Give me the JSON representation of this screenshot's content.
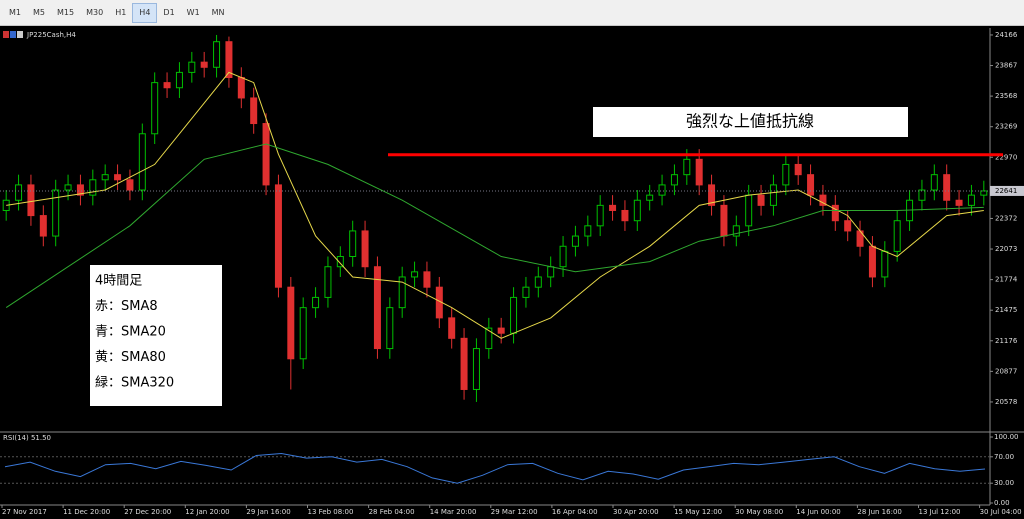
{
  "toolbar": {
    "buttons": [
      "M1",
      "M5",
      "M15",
      "M30",
      "H1",
      "H4",
      "D1",
      "W1",
      "MN"
    ],
    "active": "H4"
  },
  "chart_data": {
    "type": "candlestick",
    "symbol": "JP225Cash,H4",
    "open": [
      22450,
      22550,
      22700,
      22400,
      22200,
      22650,
      22700,
      22600,
      22750,
      22800,
      22750,
      22650,
      23200,
      23700,
      23650,
      23800,
      23900,
      23850,
      24100,
      23750,
      23550,
      23300,
      22700,
      21700,
      21000,
      21500,
      21600,
      21900,
      22000,
      22250,
      21900,
      21100,
      21500,
      21800,
      21850,
      21700,
      21400,
      21200,
      20700,
      21100,
      21300,
      21250,
      21600,
      21700,
      21800,
      21900,
      22100,
      22200,
      22300,
      22500,
      22450,
      22350,
      22550,
      22600,
      22700,
      22800,
      22950,
      22700,
      22500,
      22200,
      22300,
      22600,
      22500,
      22700,
      22900,
      22800,
      22600,
      22500,
      22350,
      22250,
      22100,
      21800,
      22050,
      22350,
      22550,
      22650,
      22800,
      22550,
      22500,
      22600
    ],
    "high": [
      22650,
      22800,
      22800,
      22500,
      22750,
      22800,
      22800,
      22850,
      22900,
      22900,
      22850,
      23300,
      23800,
      23800,
      23900,
      24000,
      24000,
      24166,
      24150,
      23850,
      23650,
      23400,
      22800,
      21800,
      21600,
      21700,
      22000,
      22100,
      22350,
      22350,
      22000,
      21600,
      21900,
      21950,
      21950,
      21800,
      21500,
      21300,
      21200,
      21400,
      21400,
      21700,
      21800,
      21900,
      22000,
      22200,
      22300,
      22400,
      22600,
      22600,
      22550,
      22650,
      22700,
      22800,
      22900,
      23050,
      23050,
      22800,
      22600,
      22400,
      22700,
      22700,
      22800,
      23000,
      23000,
      22900,
      22700,
      22600,
      22450,
      22350,
      22200,
      22150,
      22450,
      22650,
      22750,
      22900,
      22900,
      22650,
      22700,
      22741
    ],
    "low": [
      22350,
      22450,
      22300,
      22100,
      22100,
      22550,
      22500,
      22500,
      22650,
      22650,
      22550,
      22550,
      23100,
      23550,
      23550,
      23700,
      23750,
      23750,
      23650,
      23450,
      23200,
      22600,
      21600,
      20700,
      20900,
      21400,
      21500,
      21800,
      21900,
      21800,
      21000,
      21000,
      21400,
      21700,
      21600,
      21300,
      21100,
      20600,
      20578,
      21000,
      21150,
      21150,
      21500,
      21600,
      21700,
      21800,
      22000,
      22100,
      22200,
      22350,
      22250,
      22250,
      22450,
      22500,
      22600,
      22700,
      22600,
      22400,
      22100,
      22100,
      22200,
      22400,
      22400,
      22600,
      22700,
      22500,
      22400,
      22250,
      22150,
      22000,
      21700,
      21700,
      21950,
      22250,
      22450,
      22550,
      22450,
      22400,
      22400,
      22500
    ],
    "close": [
      22550,
      22700,
      22400,
      22200,
      22650,
      22700,
      22600,
      22750,
      22800,
      22750,
      22650,
      23200,
      23700,
      23650,
      23800,
      23900,
      23850,
      24100,
      23750,
      23550,
      23300,
      22700,
      21700,
      21000,
      21500,
      21600,
      21900,
      22000,
      22250,
      21900,
      21100,
      21500,
      21800,
      21850,
      21700,
      21400,
      21200,
      20700,
      21100,
      21300,
      21250,
      21600,
      21700,
      21800,
      21900,
      22100,
      22200,
      22300,
      22500,
      22450,
      22350,
      22550,
      22600,
      22700,
      22800,
      22950,
      22700,
      22500,
      22200,
      22300,
      22600,
      22500,
      22700,
      22900,
      22800,
      22600,
      22500,
      22350,
      22250,
      22100,
      21800,
      22050,
      22350,
      22550,
      22650,
      22800,
      22550,
      22500,
      22600,
      22641
    ],
    "up_color": "#00c000",
    "down_color": "#e03030",
    "lines": [
      {
        "color": "#e6d84a",
        "x": [
          0,
          8,
          12,
          16,
          18,
          20,
          22,
          25,
          28,
          32,
          36,
          40,
          44,
          48,
          52,
          56,
          60,
          64,
          68,
          70,
          72,
          76,
          79
        ],
        "values": [
          22500,
          22650,
          22900,
          23500,
          23800,
          23700,
          23000,
          22200,
          21800,
          21750,
          21500,
          21200,
          21400,
          21800,
          22100,
          22500,
          22600,
          22650,
          22400,
          22100,
          22000,
          22400,
          22450
        ]
      },
      {
        "color": "#2fa82f",
        "x": [
          0,
          10,
          16,
          21,
          26,
          32,
          40,
          46,
          52,
          56,
          62,
          66,
          72,
          79
        ],
        "values": [
          21500,
          22300,
          22950,
          23100,
          22900,
          22550,
          22000,
          21850,
          21950,
          22150,
          22300,
          22450,
          22450,
          22480
        ]
      }
    ],
    "ylim": [
      20294,
      24234
    ],
    "yticks": [
      20578,
      20877,
      21176,
      21475,
      21774,
      22073,
      22372,
      22970,
      23269,
      23568,
      23867,
      24166
    ],
    "xlim": [
      0,
      80
    ],
    "x_labels": [
      "27 Nov 2017",
      "11 Dec 20:00",
      "27 Dec 20:00",
      "12 Jan 20:00",
      "29 Jan 16:00",
      "13 Feb 08:00",
      "28 Feb 04:00",
      "14 Mar 20:00",
      "29 Mar 12:00",
      "16 Apr 04:00",
      "30 Apr 20:00",
      "15 May 12:00",
      "30 May 08:00",
      "14 Jun 00:00",
      "28 Jun 16:00",
      "13 Jul 12:00",
      "30 Jul 04:00"
    ],
    "resistance": {
      "value": 22995,
      "color": "#ff0000",
      "label": "強烈な上値抵抗線"
    },
    "note_lines": [
      "4時間足",
      "赤：SMA8",
      "青：SMA20",
      "黄：SMA80",
      "緑：SMA320"
    ],
    "rsi": {
      "label": "RSI(14) 51.50",
      "color": "#3a78d8",
      "ylim": [
        0,
        100
      ],
      "yticks": [
        {
          "value": 100,
          "label": "100.00"
        },
        {
          "value": 70,
          "label": "70.00"
        },
        {
          "value": 30,
          "label": "30.00"
        },
        {
          "value": 0,
          "label": "0.00"
        }
      ],
      "values": [
        55,
        62,
        48,
        40,
        58,
        60,
        52,
        63,
        57,
        50,
        72,
        75,
        68,
        70,
        62,
        66,
        55,
        38,
        30,
        42,
        58,
        60,
        45,
        35,
        48,
        44,
        36,
        50,
        55,
        60,
        58,
        62,
        66,
        70,
        55,
        45,
        60,
        52,
        48,
        51.5
      ]
    }
  }
}
